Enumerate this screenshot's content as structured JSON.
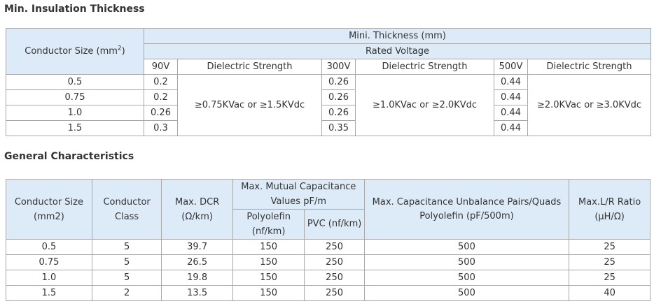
{
  "insulation": {
    "title": "Min. Insulation Thickness",
    "header": {
      "conductor_size_label": "Conductor Size (mm",
      "conductor_size_sup": "2",
      "conductor_size_close": ")",
      "mini_thickness": "Mini. Thickness (mm)",
      "rated_voltage": "Rated Voltage",
      "v90": "90V",
      "v300": "300V",
      "v500": "500V",
      "dielectric_strength": "Dielectric Strength"
    },
    "rows": [
      {
        "size": "0.5",
        "t90": "0.2",
        "t300": "0.26",
        "t500": "0.44"
      },
      {
        "size": "0.75",
        "t90": "0.2",
        "t300": "0.26",
        "t500": "0.44"
      },
      {
        "size": "1.0",
        "t90": "0.26",
        "t300": "0.26",
        "t500": "0.44"
      },
      {
        "size": "1.5",
        "t90": "0.3",
        "t300": "0.35",
        "t500": "0.44"
      }
    ],
    "dielectric": {
      "d90": "≥0.75KVac or ≥1.5KVdc",
      "d300": "≥1.0KVac or ≥2.0KVdc",
      "d500": "≥2.0KVac or ≥3.0KVdc"
    }
  },
  "general": {
    "title": "General Characteristics",
    "header": {
      "conductor_size": "Conductor Size (mm2)",
      "conductor_class": "Conductor Class",
      "max_dcr": "Max. DCR (Ω/km)",
      "mutual_cap": "Max. Mutual Capacitance Values pF/m",
      "polyolefin": "Polyolefin (nf/km)",
      "pvc": "PVC (nf/km)",
      "unbalance_line1": "Max. Capacitance Unbalance Pairs/Quads",
      "unbalance_line2": "Polyolefin (pF/500m)",
      "lr_ratio": "Max.L/R Ratio (μH/Ω)"
    },
    "rows": [
      {
        "size": "0.5",
        "cls": "5",
        "dcr": "39.7",
        "poly": "150",
        "pvc": "250",
        "unb": "500",
        "lr": "25"
      },
      {
        "size": "0.75",
        "cls": "5",
        "dcr": "26.5",
        "poly": "150",
        "pvc": "250",
        "unb": "500",
        "lr": "25"
      },
      {
        "size": "1.0",
        "cls": "5",
        "dcr": "19.8",
        "poly": "150",
        "pvc": "250",
        "unb": "500",
        "lr": "25"
      },
      {
        "size": "1.5",
        "cls": "2",
        "dcr": "13.5",
        "poly": "150",
        "pvc": "250",
        "unb": "500",
        "lr": "40"
      }
    ]
  },
  "colors": {
    "header_bg": "#ddeaf7",
    "border": "#a8a8a8",
    "text": "#333333"
  }
}
